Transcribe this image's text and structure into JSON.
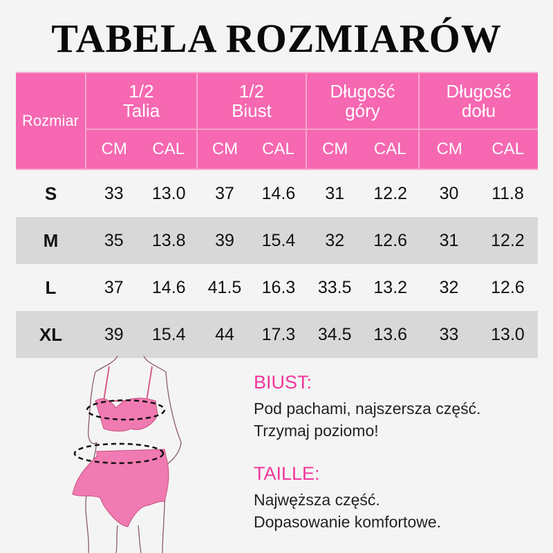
{
  "title": "TABELA ROZMIARÓW",
  "table": {
    "size_header": "Rozmiar",
    "groups": [
      {
        "line1": "1/2",
        "line2": "Talia"
      },
      {
        "line1": "1/2",
        "line2": "Biust"
      },
      {
        "line1": "Długość",
        "line2": "góry"
      },
      {
        "line1": "Długość",
        "line2": "dołu"
      }
    ],
    "unit_cm": "CM",
    "unit_cal": "CAL",
    "rows": [
      {
        "size": "S",
        "values": [
          "33",
          "13.0",
          "37",
          "14.6",
          "31",
          "12.2",
          "30",
          "11.8"
        ]
      },
      {
        "size": "M",
        "values": [
          "35",
          "13.8",
          "39",
          "15.4",
          "32",
          "12.6",
          "31",
          "12.2"
        ]
      },
      {
        "size": "L",
        "values": [
          "37",
          "14.6",
          "41.5",
          "16.3",
          "33.5",
          "13.2",
          "32",
          "12.6"
        ]
      },
      {
        "size": "XL",
        "values": [
          "39",
          "15.4",
          "44",
          "17.3",
          "34.5",
          "13.6",
          "33",
          "13.0"
        ]
      }
    ]
  },
  "notes": [
    {
      "heading": "BIUST:",
      "line1": "Pod pachami, najszersza część.",
      "line2": "Trzymaj poziomo!"
    },
    {
      "heading": "TAILLE:",
      "line1": "Najwęższa część.",
      "line2": "Dopasowanie komfortowe."
    }
  ],
  "colors": {
    "header_pink": "#f668b1",
    "accent_pink": "#f0359a",
    "row_gray": "#d8d8d8"
  }
}
